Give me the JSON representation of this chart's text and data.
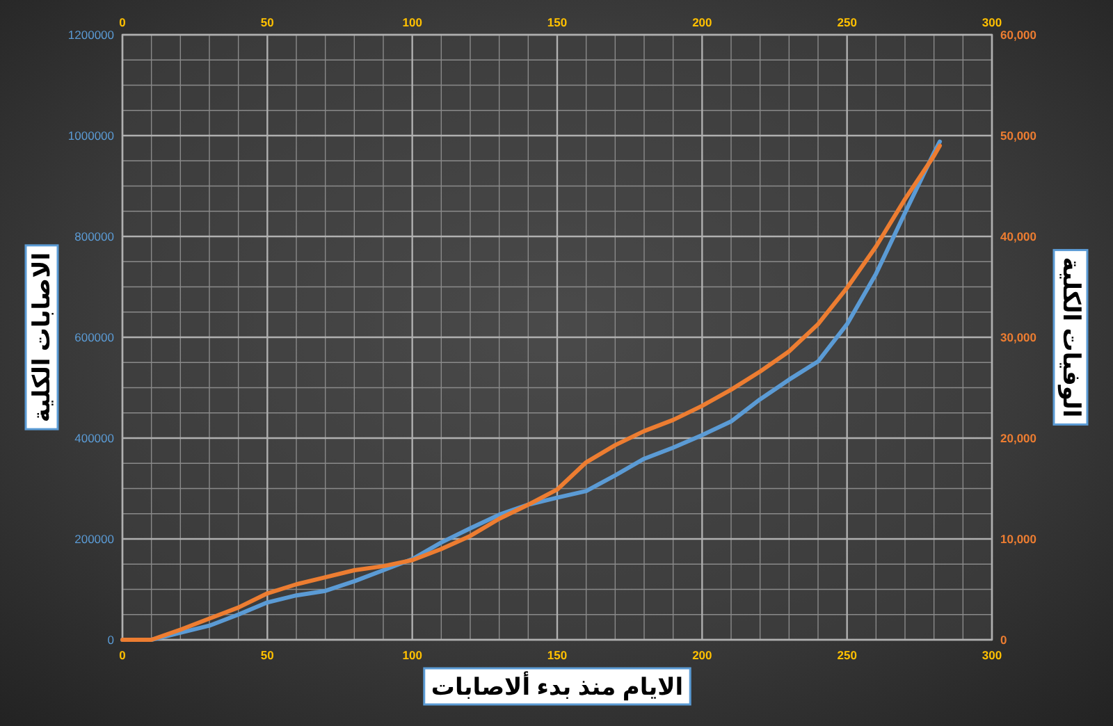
{
  "chart_data": {
    "type": "line",
    "xlabel": "الايام منذ بدء ألاصابات",
    "ylabel": "الاصابات الكلية",
    "y2label": "الوفيات الكلية",
    "x": [
      0,
      10,
      20,
      30,
      40,
      50,
      60,
      70,
      80,
      90,
      100,
      110,
      120,
      130,
      140,
      150,
      160,
      170,
      180,
      190,
      200,
      210,
      220,
      230,
      240,
      250,
      260,
      270,
      280,
      282
    ],
    "series": [
      {
        "color": "#5b9bd5",
        "values": [
          0,
          0,
          14000,
          28000,
          50000,
          74000,
          88000,
          97000,
          116000,
          138000,
          160000,
          193000,
          221000,
          248000,
          268000,
          282000,
          295000,
          326000,
          359000,
          381000,
          406000,
          433000,
          477000,
          516000,
          552000,
          626000,
          726000,
          847000,
          966000,
          988000
        ]
      },
      {
        "color": "#ed7d31",
        "axis": "y2",
        "values": [
          0,
          0,
          1000,
          2100,
          3200,
          4600,
          5500,
          6200,
          6900,
          7300,
          7900,
          9000,
          10300,
          12000,
          13400,
          14900,
          17600,
          19300,
          20700,
          21800,
          23200,
          24800,
          26600,
          28600,
          31300,
          34900,
          39000,
          43700,
          48000,
          49000
        ]
      }
    ],
    "xlim": [
      0,
      300
    ],
    "xticks": [
      0,
      50,
      100,
      150,
      200,
      250,
      300
    ],
    "x2lim": [
      0,
      300
    ],
    "x2ticks": [
      0,
      50,
      100,
      150,
      200,
      250,
      300
    ],
    "ylim": [
      0,
      1200000
    ],
    "yticks": [
      0,
      200000,
      400000,
      600000,
      800000,
      1000000,
      1200000
    ],
    "y2lim": [
      0,
      60000
    ],
    "y2ticks": [
      0,
      {
        "value": 10000,
        "label": "10,000"
      },
      {
        "value": 20000,
        "label": "20,000"
      },
      {
        "value": 30000,
        "label": "30,000"
      },
      {
        "value": 40000,
        "label": "40,000"
      },
      {
        "value": 50000,
        "label": "50,000"
      },
      {
        "value": 60000,
        "label": "60,000"
      }
    ],
    "grid": true,
    "marker": "none",
    "line_style": "solid"
  }
}
